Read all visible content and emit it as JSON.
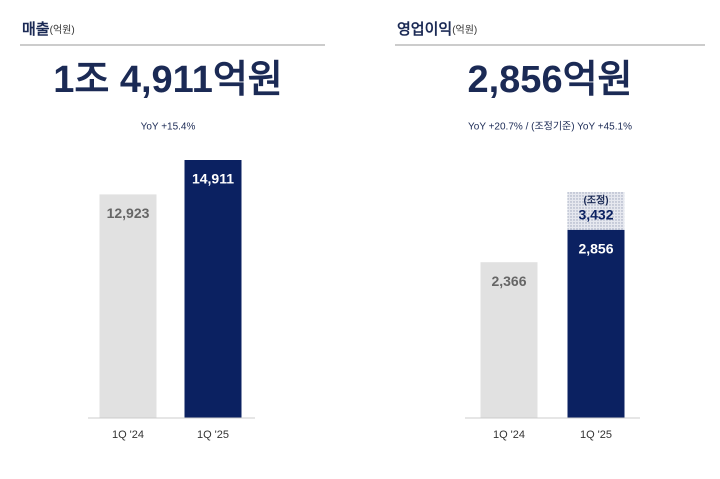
{
  "chart_data": [
    {
      "type": "bar",
      "title": "매출",
      "unit": "(억원)",
      "headline": "1조 4,911억원",
      "subtitle": "YoY +15.4%",
      "categories": [
        "1Q '24",
        "1Q '25"
      ],
      "values": [
        12923,
        14911
      ],
      "value_labels": [
        "12,923",
        "14,911"
      ],
      "colors": [
        "#e1e1e1",
        "#0b2161"
      ]
    },
    {
      "type": "bar",
      "title": "영업이익",
      "unit": "(억원)",
      "headline": "2,856억원",
      "subtitle": "YoY +20.7% / (조정기준) YoY +45.1%",
      "categories": [
        "1Q '24",
        "1Q '25"
      ],
      "values": [
        2366,
        2856
      ],
      "value_labels": [
        "2,366",
        "2,856"
      ],
      "colors": [
        "#e1e1e1",
        "#0b2161"
      ],
      "adjusted": {
        "label": "(조정)",
        "values": [
          null,
          3432
        ],
        "value_labels": [
          null,
          "3,432"
        ]
      }
    }
  ]
}
